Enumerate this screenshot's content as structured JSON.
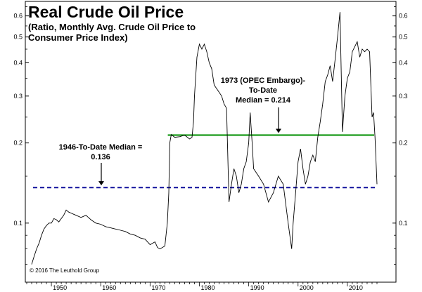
{
  "chart_data": {
    "type": "line",
    "title": "Real Crude Oil Price",
    "subtitle_line1": "(Ratio, Monthly Avg. Crude Oil Price to",
    "subtitle_line2": "Consumer Price Index)",
    "y_scale": "log",
    "ylim": [
      0.06,
      0.68
    ],
    "xlim": [
      1945,
      2016
    ],
    "y_ticks": [
      0.1,
      0.2,
      0.3,
      0.4,
      0.5,
      0.6
    ],
    "y_tick_labels": [
      "0.1",
      "0.2",
      "0.3",
      "0.4",
      "0.5",
      "0.6"
    ],
    "x_ticks": [
      1950,
      1960,
      1970,
      1980,
      1990,
      2000,
      2010
    ],
    "x_tick_labels": [
      "1950",
      "1960",
      "1970",
      "1980",
      "1990",
      "2000",
      "2010"
    ],
    "series": [
      {
        "color": "#000000",
        "points": [
          [
            1946.0,
            0.07
          ],
          [
            1946.5,
            0.075
          ],
          [
            1947.0,
            0.08
          ],
          [
            1947.5,
            0.084
          ],
          [
            1948.0,
            0.09
          ],
          [
            1948.5,
            0.095
          ],
          [
            1949.0,
            0.098
          ],
          [
            1949.5,
            0.1
          ],
          [
            1950.0,
            0.1
          ],
          [
            1950.5,
            0.104
          ],
          [
            1951.0,
            0.103
          ],
          [
            1951.5,
            0.101
          ],
          [
            1952.0,
            0.104
          ],
          [
            1952.5,
            0.107
          ],
          [
            1953.0,
            0.112
          ],
          [
            1953.5,
            0.11
          ],
          [
            1954.0,
            0.109
          ],
          [
            1954.5,
            0.108
          ],
          [
            1955.0,
            0.107
          ],
          [
            1956.0,
            0.105
          ],
          [
            1957.0,
            0.107
          ],
          [
            1957.5,
            0.105
          ],
          [
            1958.0,
            0.103
          ],
          [
            1959.0,
            0.1
          ],
          [
            1960.0,
            0.099
          ],
          [
            1961.0,
            0.097
          ],
          [
            1962.0,
            0.096
          ],
          [
            1963.0,
            0.095
          ],
          [
            1964.0,
            0.094
          ],
          [
            1965.0,
            0.093
          ],
          [
            1966.0,
            0.091
          ],
          [
            1967.0,
            0.09
          ],
          [
            1968.0,
            0.088
          ],
          [
            1969.0,
            0.087
          ],
          [
            1970.0,
            0.083
          ],
          [
            1971.0,
            0.085
          ],
          [
            1971.5,
            0.081
          ],
          [
            1972.0,
            0.08
          ],
          [
            1973.0,
            0.082
          ],
          [
            1973.5,
            0.1
          ],
          [
            1973.8,
            0.13
          ],
          [
            1974.0,
            0.2
          ],
          [
            1974.3,
            0.215
          ],
          [
            1975.0,
            0.21
          ],
          [
            1976.0,
            0.211
          ],
          [
            1977.0,
            0.214
          ],
          [
            1978.0,
            0.207
          ],
          [
            1978.5,
            0.21
          ],
          [
            1978.8,
            0.24
          ],
          [
            1979.0,
            0.3
          ],
          [
            1979.5,
            0.42
          ],
          [
            1980.0,
            0.47
          ],
          [
            1980.5,
            0.45
          ],
          [
            1981.0,
            0.47
          ],
          [
            1981.5,
            0.44
          ],
          [
            1982.0,
            0.4
          ],
          [
            1982.5,
            0.38
          ],
          [
            1983.0,
            0.33
          ],
          [
            1983.5,
            0.32
          ],
          [
            1984.0,
            0.31
          ],
          [
            1984.5,
            0.3
          ],
          [
            1985.0,
            0.28
          ],
          [
            1985.5,
            0.27
          ],
          [
            1986.0,
            0.12
          ],
          [
            1986.5,
            0.14
          ],
          [
            1987.0,
            0.16
          ],
          [
            1987.5,
            0.15
          ],
          [
            1988.0,
            0.13
          ],
          [
            1988.5,
            0.14
          ],
          [
            1989.0,
            0.16
          ],
          [
            1989.5,
            0.17
          ],
          [
            1990.0,
            0.2
          ],
          [
            1990.3,
            0.26
          ],
          [
            1990.7,
            0.2
          ],
          [
            1991.0,
            0.16
          ],
          [
            1992.0,
            0.15
          ],
          [
            1993.0,
            0.14
          ],
          [
            1994.0,
            0.12
          ],
          [
            1995.0,
            0.13
          ],
          [
            1996.0,
            0.15
          ],
          [
            1997.0,
            0.14
          ],
          [
            1998.0,
            0.1
          ],
          [
            1998.7,
            0.08
          ],
          [
            1999.0,
            0.1
          ],
          [
            1999.5,
            0.13
          ],
          [
            2000.0,
            0.17
          ],
          [
            2000.5,
            0.19
          ],
          [
            2001.0,
            0.16
          ],
          [
            2001.5,
            0.14
          ],
          [
            2002.0,
            0.15
          ],
          [
            2002.5,
            0.17
          ],
          [
            2003.0,
            0.18
          ],
          [
            2003.5,
            0.17
          ],
          [
            2004.0,
            0.21
          ],
          [
            2004.5,
            0.24
          ],
          [
            2005.0,
            0.28
          ],
          [
            2005.5,
            0.34
          ],
          [
            2006.0,
            0.36
          ],
          [
            2006.5,
            0.39
          ],
          [
            2007.0,
            0.34
          ],
          [
            2007.5,
            0.41
          ],
          [
            2008.0,
            0.5
          ],
          [
            2008.5,
            0.62
          ],
          [
            2009.0,
            0.22
          ],
          [
            2009.5,
            0.3
          ],
          [
            2010.0,
            0.35
          ],
          [
            2010.5,
            0.37
          ],
          [
            2011.0,
            0.44
          ],
          [
            2011.5,
            0.46
          ],
          [
            2012.0,
            0.48
          ],
          [
            2012.5,
            0.42
          ],
          [
            2013.0,
            0.45
          ],
          [
            2013.5,
            0.44
          ],
          [
            2014.0,
            0.45
          ],
          [
            2014.5,
            0.44
          ],
          [
            2015.0,
            0.25
          ],
          [
            2015.3,
            0.26
          ],
          [
            2015.6,
            0.21
          ],
          [
            2016.0,
            0.14
          ]
        ]
      }
    ],
    "reference_lines": [
      {
        "label_line1": "1973 (OPEC Embargo)-",
        "label_line2": "To-Date",
        "label_line3": "Median = 0.214",
        "value": 0.214,
        "x_start": 1973.6,
        "x_end": 2016,
        "color": "#1a9a1a",
        "style": "solid"
      },
      {
        "label_line1": "1946-To-Date Median =",
        "label_line2": "0.136",
        "value": 0.136,
        "x_start": 1946,
        "x_end": 2016,
        "color": "#1a1aa0",
        "style": "dashed"
      }
    ]
  },
  "copyright": "© 2016 The Leuthold Group"
}
